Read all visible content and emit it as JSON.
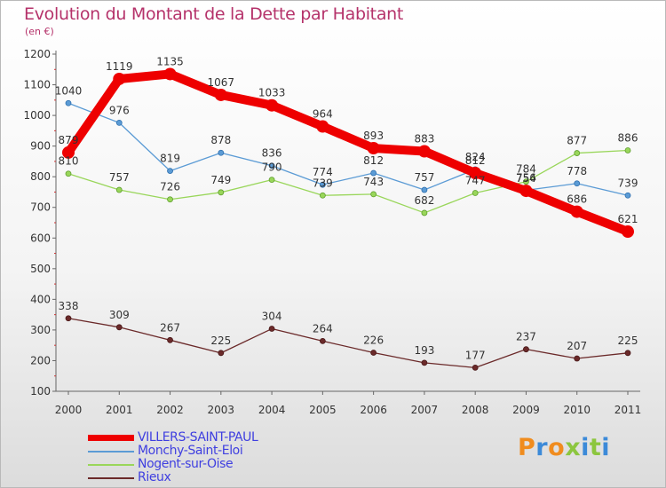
{
  "chart_data": {
    "type": "line",
    "title": "Evolution du Montant de la Dette par Habitant",
    "subtitle": "(en €)",
    "x": [
      "2000",
      "2001",
      "2002",
      "2003",
      "2004",
      "2005",
      "2006",
      "2007",
      "2008",
      "2009",
      "2010",
      "2011"
    ],
    "yticks": [
      "1200",
      "1100",
      "1000",
      "900",
      "800",
      "700",
      "600",
      "500",
      "400",
      "300",
      "200",
      "100"
    ],
    "ylim": [
      100,
      1200
    ],
    "grid": false,
    "legend_position": "bottom-left",
    "series": [
      {
        "name": "VILLERS-SAINT-PAUL",
        "color": "#ee0000",
        "values": [
          879,
          1119,
          1135,
          1067,
          1033,
          964,
          893,
          883,
          812,
          754,
          686,
          621
        ]
      },
      {
        "name": "Monchy-Saint-Eloi",
        "color": "#5b9bd5",
        "values": [
          1040,
          976,
          819,
          878,
          836,
          774,
          812,
          757,
          824,
          756,
          778,
          739
        ]
      },
      {
        "name": "Nogent-sur-Oise",
        "color": "#99d65a",
        "values": [
          810,
          757,
          726,
          749,
          790,
          739,
          743,
          682,
          747,
          784,
          877,
          886
        ]
      },
      {
        "name": "Rieux",
        "color": "#6b2a2a",
        "values": [
          338,
          309,
          267,
          225,
          304,
          264,
          226,
          193,
          177,
          237,
          207,
          225
        ]
      }
    ],
    "data_labels": [
      [
        "879",
        "1119",
        "1135",
        "1067",
        "1033",
        "964",
        "893",
        "883",
        "812",
        "754",
        "686",
        "621"
      ],
      [
        "1040",
        "976",
        "819",
        "878",
        "836",
        "774",
        "812",
        "757",
        "824",
        "756",
        "778",
        "739"
      ],
      [
        "810",
        "757",
        "726",
        "749",
        "790",
        "739",
        "743",
        "682",
        "747",
        "784",
        "877",
        "886"
      ],
      [
        "338",
        "309",
        "267",
        "225",
        "304",
        "264",
        "226",
        "193",
        "177",
        "237",
        "207",
        "225"
      ]
    ]
  },
  "logo": {
    "text": "Proxiti",
    "colors": [
      "#f08c1e",
      "#3c8ad8",
      "#f08c1e",
      "#8cc63f",
      "#3c8ad8",
      "#8cc63f",
      "#3c8ad8"
    ]
  }
}
